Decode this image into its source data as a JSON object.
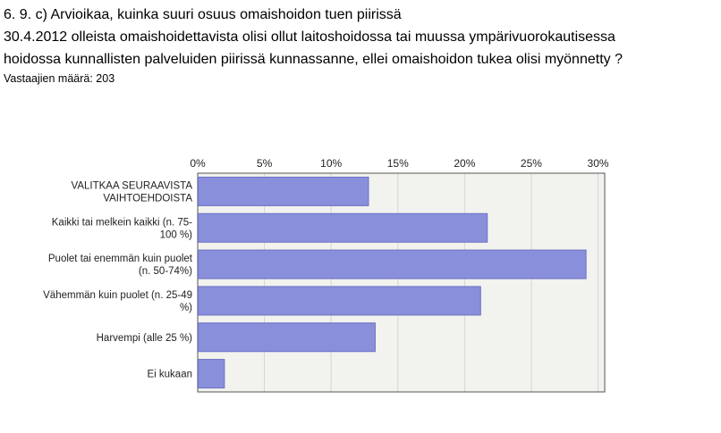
{
  "question": {
    "lines": [
      "6. 9. c) Arvioikaa, kuinka suuri osuus omaishoidon tuen piirissä",
      "30.4.2012 olleista omaishoidettavista olisi ollut laitoshoidossa tai muussa ympärivuorokautisessa",
      "hoidossa kunnallisten palveluiden piirissä kunnassanne, ellei omaishoidon tukea olisi myönnetty ?"
    ],
    "respondents": "Vastaajien määrä: 203"
  },
  "colors": {
    "bar_fill": "#8a8fdc",
    "bar_stroke": "#6a6fc4",
    "plot_bg": "#f2f2ee",
    "grid": "#d6d6d0",
    "axis": "#555555"
  },
  "chart_data": {
    "type": "bar",
    "orientation": "horizontal",
    "categories": [
      [
        "VALITKAA SEURAAVISTA",
        "VAIHTOEHDOISTA"
      ],
      [
        "Kaikki tai melkein kaikki (n. 75-",
        "100 %)"
      ],
      [
        "Puolet tai enemmän kuin puolet",
        "(n. 50-74%)"
      ],
      [
        "Vähemmän kuin puolet (n. 25-49",
        "%)"
      ],
      [
        "Harvempi (alle 25 %)"
      ],
      [
        "Ei kukaan"
      ]
    ],
    "values": [
      12.8,
      21.7,
      29.1,
      21.2,
      13.3,
      2.0
    ],
    "xlim": [
      0,
      30.5
    ],
    "ticks": [
      0,
      5,
      10,
      15,
      20,
      25,
      30
    ],
    "tick_labels": [
      "0%",
      "5%",
      "10%",
      "15%",
      "20%",
      "25%",
      "30%"
    ],
    "grid": true,
    "axis_position": "top"
  }
}
